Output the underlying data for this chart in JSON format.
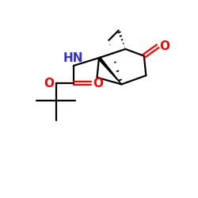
{
  "background": "#ffffff",
  "bond_color": "#000000",
  "oxygen_color": "#ff0000",
  "nitrogen_color": "#3333cc",
  "line_width": 1.6,
  "figsize": [
    2.5,
    2.5
  ],
  "dpi": 100,
  "xlim": [
    0,
    10
  ],
  "ylim": [
    0,
    10
  ]
}
